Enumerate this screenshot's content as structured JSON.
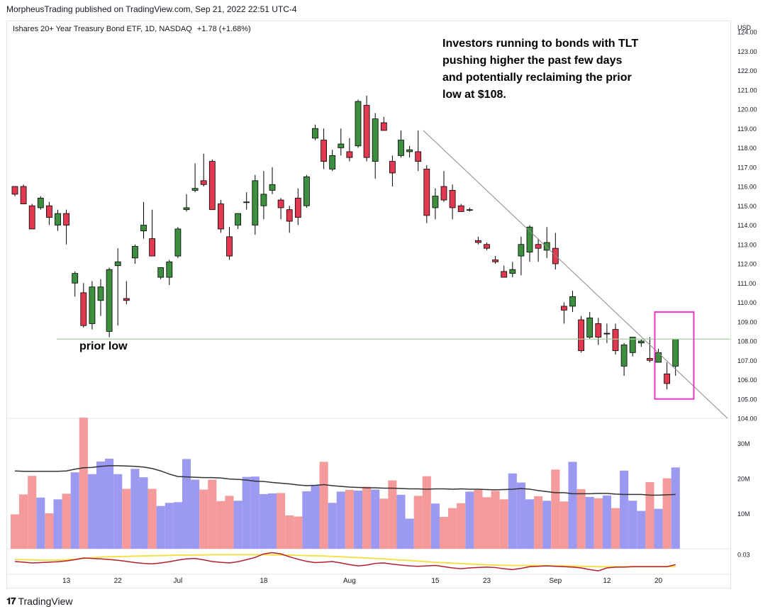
{
  "header": {
    "published": "MorpheusTrading published on TradingView.com, Sep 21, 2022 22:51 UTC-4"
  },
  "legend": {
    "title": "Ishares 20+ Year Treasury Bond ETF, 1D, NASDAQ",
    "change": "+1.78 (+1.68%)"
  },
  "annotation": {
    "note": "Investors running to bonds with TLT\npushing higher the past few days\nand potentially reclaiming the prior\nlow at $108.",
    "prior_low_label": "prior low",
    "prior_low_level": 108.1
  },
  "currency": "USD",
  "footer": {
    "brand": "TradingView",
    "logo": "tradingview-logo-icon"
  },
  "colors": {
    "up": "#3d8f40",
    "down": "#e1394f",
    "vol_up": "#9c99f0",
    "vol_down": "#f59a9a",
    "ma": "#333333",
    "priorlow": "#9fd39f",
    "trend": "#8a8a8a",
    "box": "#e838c8",
    "ind_yellow": "#f4e04d",
    "ind_red": "#b21f2d"
  },
  "chart_data": {
    "type": "candlestick",
    "price_range": [
      104,
      124
    ],
    "yticks": [
      "104.00",
      "105.00",
      "106.00",
      "107.00",
      "108.00",
      "109.00",
      "110.00",
      "111.00",
      "112.00",
      "113.00",
      "114.00",
      "115.00",
      "116.00",
      "117.00",
      "118.00",
      "119.00",
      "120.00",
      "121.00",
      "122.00",
      "123.00",
      "124.00"
    ],
    "xticks": [
      {
        "i": 6,
        "label": "13"
      },
      {
        "i": 12,
        "label": "22"
      },
      {
        "i": 19,
        "label": "Jul"
      },
      {
        "i": 29,
        "label": "18"
      },
      {
        "i": 39,
        "label": "Aug"
      },
      {
        "i": 49,
        "label": "15"
      },
      {
        "i": 55,
        "label": "23"
      },
      {
        "i": 63,
        "label": "Sep"
      },
      {
        "i": 69,
        "label": "12"
      },
      {
        "i": 75,
        "label": "20"
      }
    ],
    "ohlc": [
      [
        116.0,
        116.0,
        115.5,
        115.6
      ],
      [
        116.0,
        116.1,
        115.1,
        115.1
      ],
      [
        115.0,
        115.1,
        113.8,
        113.8
      ],
      [
        114.9,
        115.5,
        114.8,
        115.4
      ],
      [
        115.0,
        115.2,
        114.0,
        114.4
      ],
      [
        114.0,
        114.8,
        113.7,
        114.6
      ],
      [
        114.6,
        114.8,
        113.0,
        114.0
      ],
      [
        111.0,
        111.6,
        110.3,
        111.5
      ],
      [
        110.5,
        111.0,
        108.7,
        108.8
      ],
      [
        108.9,
        111.1,
        108.6,
        110.8
      ],
      [
        110.1,
        111.2,
        109.3,
        110.8
      ],
      [
        108.5,
        111.8,
        108.2,
        111.7
      ],
      [
        111.9,
        112.8,
        108.8,
        112.1
      ],
      [
        110.2,
        111.1,
        109.9,
        110.1
      ],
      [
        112.3,
        113.0,
        112.0,
        112.9
      ],
      [
        113.7,
        115.2,
        113.3,
        114.0
      ],
      [
        113.3,
        114.8,
        112.4,
        112.4
      ],
      [
        111.3,
        111.8,
        111.2,
        111.8
      ],
      [
        111.3,
        112.2,
        110.9,
        112.1
      ],
      [
        112.4,
        113.9,
        112.3,
        113.8
      ],
      [
        114.8,
        115.6,
        114.7,
        114.9
      ],
      [
        115.8,
        117.2,
        115.7,
        115.9
      ],
      [
        116.3,
        117.7,
        116.0,
        116.1
      ],
      [
        117.3,
        117.4,
        114.8,
        114.8
      ],
      [
        115.1,
        115.3,
        113.6,
        113.8
      ],
      [
        113.4,
        113.9,
        112.2,
        112.4
      ],
      [
        114.0,
        114.6,
        113.8,
        114.6
      ],
      [
        115.2,
        115.7,
        114.8,
        115.2
      ],
      [
        114.0,
        116.6,
        113.5,
        116.3
      ],
      [
        115.0,
        116.8,
        114.3,
        115.6
      ],
      [
        115.8,
        117.0,
        115.6,
        116.1
      ],
      [
        115.3,
        115.4,
        114.3,
        114.9
      ],
      [
        114.8,
        115.0,
        113.6,
        114.2
      ],
      [
        115.4,
        115.9,
        114.0,
        114.4
      ],
      [
        115.0,
        116.6,
        114.9,
        116.5
      ],
      [
        118.5,
        119.2,
        118.4,
        119.0
      ],
      [
        118.4,
        119.0,
        116.9,
        117.3
      ],
      [
        116.9,
        117.9,
        116.8,
        117.6
      ],
      [
        118.0,
        119.0,
        117.6,
        118.2
      ],
      [
        117.8,
        118.5,
        117.3,
        117.5
      ],
      [
        118.1,
        120.5,
        118.0,
        120.4
      ],
      [
        120.2,
        120.7,
        117.3,
        117.5
      ],
      [
        117.3,
        119.8,
        116.4,
        119.5
      ],
      [
        119.3,
        119.6,
        118.9,
        118.9
      ],
      [
        117.3,
        117.6,
        116.0,
        116.7
      ],
      [
        117.6,
        118.9,
        117.5,
        118.4
      ],
      [
        117.8,
        118.1,
        117.5,
        117.9
      ],
      [
        117.8,
        118.9,
        116.8,
        117.3
      ],
      [
        116.9,
        117.1,
        114.1,
        114.5
      ],
      [
        114.9,
        115.9,
        114.3,
        115.5
      ],
      [
        116.0,
        116.8,
        115.2,
        115.3
      ],
      [
        115.8,
        116.1,
        114.3,
        114.9
      ],
      [
        115.0,
        115.1,
        114.7,
        114.7
      ],
      [
        114.8,
        114.9,
        114.7,
        114.8
      ],
      [
        113.2,
        113.4,
        113.0,
        113.1
      ],
      [
        113.0,
        113.1,
        112.7,
        112.8
      ],
      [
        112.2,
        112.4,
        112.0,
        112.1
      ],
      [
        111.6,
        111.9,
        111.3,
        111.3
      ],
      [
        111.5,
        112.1,
        111.3,
        111.7
      ],
      [
        112.4,
        113.4,
        111.4,
        113.0
      ],
      [
        112.6,
        114.0,
        112.1,
        113.9
      ],
      [
        113.0,
        113.3,
        112.1,
        112.8
      ],
      [
        112.7,
        113.9,
        112.3,
        113.1
      ],
      [
        112.8,
        113.6,
        111.7,
        112.0
      ],
      [
        109.8,
        110.0,
        108.9,
        109.6
      ],
      [
        109.8,
        110.6,
        109.5,
        110.3
      ],
      [
        109.1,
        109.3,
        107.4,
        107.5
      ],
      [
        108.2,
        109.5,
        108.1,
        109.2
      ],
      [
        108.9,
        109.2,
        107.8,
        108.2
      ],
      [
        108.4,
        108.9,
        107.9,
        108.4
      ],
      [
        108.6,
        108.9,
        107.3,
        107.5
      ],
      [
        106.7,
        107.9,
        106.2,
        107.8
      ],
      [
        107.4,
        108.2,
        107.2,
        108.2
      ],
      [
        107.9,
        108.1,
        107.7,
        108.0
      ],
      [
        107.1,
        108.2,
        106.9,
        107.0
      ],
      [
        106.9,
        107.6,
        106.9,
        107.4
      ],
      [
        106.3,
        106.9,
        105.5,
        105.8
      ],
      [
        106.7,
        108.1,
        106.2,
        108.1
      ]
    ],
    "volume_axis": {
      "range": [
        0,
        36
      ],
      "ticks": [
        {
          "v": 10,
          "label": "10M"
        },
        {
          "v": 20,
          "label": "20M"
        },
        {
          "v": 30,
          "label": "30M"
        }
      ]
    },
    "volume": [
      9.8,
      15.5,
      20.8,
      14.6,
      10.1,
      14.1,
      15.7,
      21.8,
      37.4,
      21.3,
      24.9,
      25.7,
      21.3,
      17.1,
      22.8,
      20.4,
      17.1,
      12.2,
      13.1,
      13.3,
      25.6,
      19.7,
      16.9,
      19.7,
      13.6,
      15.1,
      13.7,
      20.5,
      20.6,
      15.6,
      15.8,
      15.9,
      9.5,
      9.2,
      16.4,
      18.1,
      24.8,
      13.1,
      16.3,
      16.8,
      16.6,
      17.7,
      16.9,
      14.3,
      19.5,
      15.4,
      8.6,
      15.1,
      20.7,
      12.9,
      9.1,
      11.6,
      13.0,
      16.3,
      16.8,
      14.7,
      16.5,
      14.1,
      21.5,
      18.9,
      14.1,
      15.0,
      13.7,
      22.6,
      13.5,
      24.8,
      17.0,
      14.8,
      14.4,
      15.2,
      11.6,
      22.3,
      13.7,
      10.8,
      19.0,
      11.4,
      20.1,
      23.2
    ],
    "volume_ma": [
      22.2,
      22.1,
      22.1,
      22.1,
      22.1,
      22.1,
      22.2,
      22.7,
      23.1,
      23.2,
      23.5,
      23.7,
      23.7,
      23.6,
      23.5,
      23.3,
      22.9,
      22.2,
      21.3,
      20.6,
      20.5,
      20.4,
      20.3,
      20.3,
      20.2,
      19.9,
      19.8,
      19.6,
      19.3,
      19.2,
      18.9,
      18.7,
      18.5,
      18.2,
      18.0,
      18.1,
      18.3,
      18.0,
      17.8,
      17.6,
      17.5,
      17.4,
      17.4,
      17.3,
      17.3,
      17.2,
      17.1,
      17.1,
      17.0,
      17.1,
      17.1,
      17.0,
      17.1,
      17.0,
      17.0,
      16.9,
      16.8,
      16.9,
      17.0,
      17.2,
      17.0,
      16.6,
      16.3,
      16.0,
      16.0,
      15.7,
      15.7,
      15.7,
      15.8,
      15.8,
      15.6,
      15.5,
      15.5,
      15.5,
      15.3,
      15.3,
      15.4,
      15.5
    ],
    "indicator": {
      "tick": "0.03",
      "range": [
        -0.06,
        0.05
      ],
      "signal": [
        0.005,
        0.004,
        0.003,
        0.002,
        0.002,
        0.002,
        0.003,
        0.006,
        0.01,
        0.013,
        0.016,
        0.018,
        0.019,
        0.02,
        0.021,
        0.022,
        0.023,
        0.024,
        0.025,
        0.026,
        0.026,
        0.027,
        0.027,
        0.028,
        0.028,
        0.028,
        0.028,
        0.028,
        0.028,
        0.028,
        0.027,
        0.027,
        0.026,
        0.025,
        0.024,
        0.023,
        0.022,
        0.02,
        0.018,
        0.016,
        0.014,
        0.012,
        0.01,
        0.008,
        0.005,
        0.002,
        0.0,
        -0.003,
        -0.006,
        -0.009,
        -0.011,
        -0.013,
        -0.015,
        -0.017,
        -0.019,
        -0.021,
        -0.022,
        -0.023,
        -0.024,
        -0.024,
        -0.024,
        -0.025,
        -0.025,
        -0.026,
        -0.026,
        -0.027,
        -0.028,
        -0.029,
        -0.03,
        -0.03,
        -0.03,
        -0.03,
        -0.03,
        -0.03,
        -0.03,
        -0.03,
        -0.03,
        -0.03
      ],
      "line": [
        -0.005,
        -0.008,
        -0.012,
        -0.01,
        -0.008,
        -0.006,
        -0.002,
        0.004,
        0.012,
        0.01,
        0.008,
        0.005,
        0.001,
        -0.004,
        -0.01,
        -0.014,
        -0.016,
        -0.012,
        -0.006,
        0.002,
        0.008,
        0.01,
        0.003,
        -0.005,
        -0.009,
        -0.012,
        -0.006,
        0.004,
        0.015,
        0.032,
        0.038,
        0.032,
        0.018,
        0.006,
        -0.004,
        -0.01,
        -0.008,
        -0.005,
        -0.012,
        -0.02,
        -0.026,
        -0.022,
        -0.014,
        -0.012,
        -0.018,
        -0.022,
        -0.026,
        -0.028,
        -0.026,
        -0.024,
        -0.03,
        -0.036,
        -0.04,
        -0.036,
        -0.034,
        -0.032,
        -0.034,
        -0.04,
        -0.044,
        -0.038,
        -0.03,
        -0.028,
        -0.026,
        -0.028,
        -0.03,
        -0.032,
        -0.036,
        -0.044,
        -0.05,
        -0.036,
        -0.032,
        -0.032,
        -0.03,
        -0.03,
        -0.03,
        -0.03,
        -0.03,
        -0.02
      ]
    }
  }
}
